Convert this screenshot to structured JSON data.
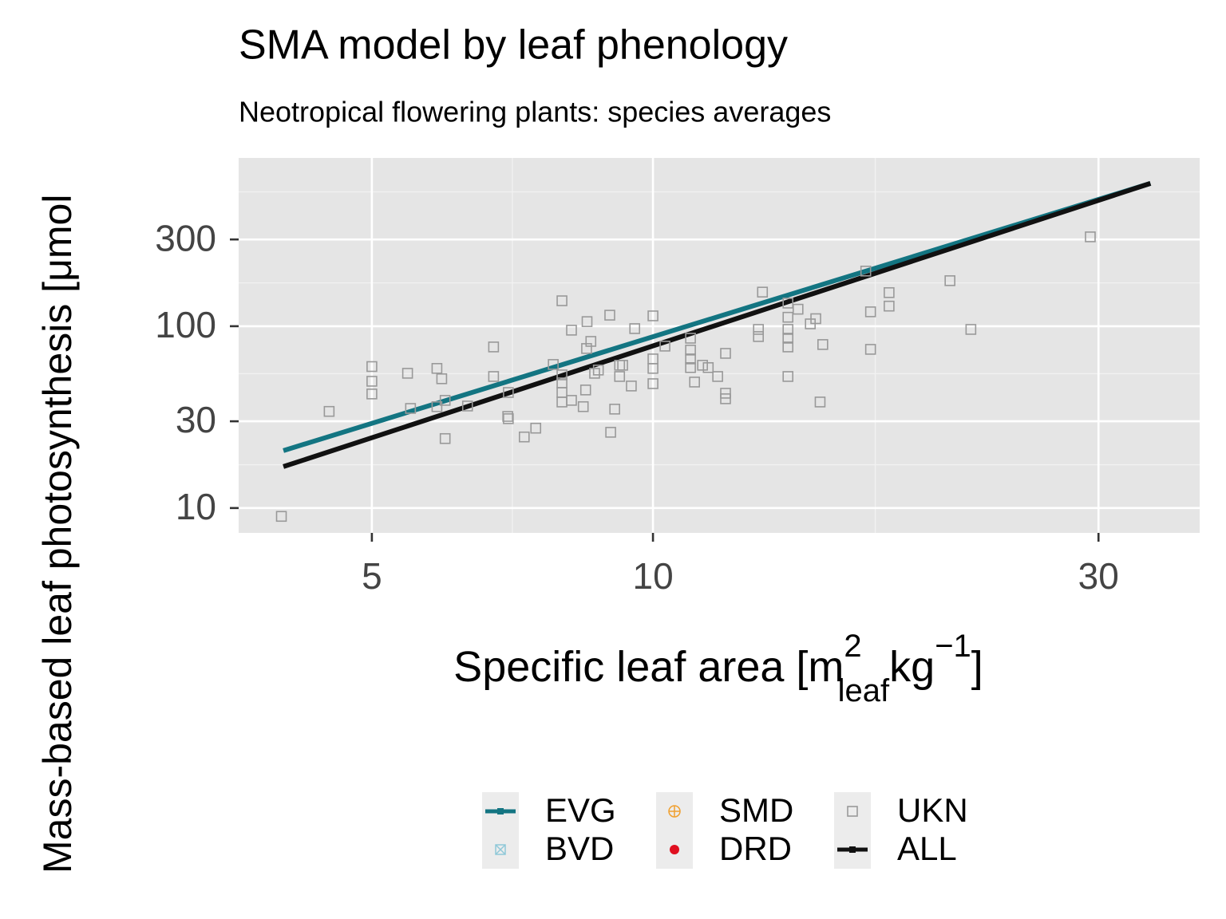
{
  "chart_data": {
    "type": "scatter",
    "title": "SMA model by leaf phenology",
    "subtitle": "Neotropical flowering plants: species averages",
    "y_label": "Mass-based leaf photosynthesis [μmol",
    "x_label": {
      "text": "Specific leaf area [m",
      "sup1": "2",
      "sub": "leaf",
      "mid": "kg",
      "sup2": "−1",
      "end": "]"
    },
    "xlog": true,
    "ylog": true,
    "grid": true,
    "xlim": [
      3.6,
      38.5
    ],
    "ylim": [
      7.3,
      842
    ],
    "xticks": [
      5,
      10,
      30
    ],
    "yticks": [
      10,
      30,
      100,
      300
    ],
    "xminor": [
      7.07,
      17.3
    ],
    "yminor": [
      17.3,
      54.8,
      173,
      548
    ],
    "series": [
      {
        "name": "EVG",
        "kind": "line",
        "color": "#137582",
        "x": [
          4.02,
          34.1
        ],
        "values": [
          20.7,
          610
        ]
      },
      {
        "name": "BVD",
        "kind": "points",
        "symbol": "boxx",
        "color": "#8fc8d8",
        "x": [],
        "values": []
      },
      {
        "name": "SMD",
        "kind": "points",
        "symbol": "crosscircle",
        "color": "#f0a030",
        "x": [],
        "values": []
      },
      {
        "name": "DRD",
        "kind": "points",
        "symbol": "dot",
        "color": "#e01020",
        "x": [],
        "values": []
      },
      {
        "name": "UKN",
        "kind": "points",
        "symbol": "square",
        "color": "#999999",
        "x": [
          4.0,
          4.5,
          5.0,
          5.0,
          5.0,
          5.46,
          5.5,
          5.87,
          5.94,
          5.87,
          5.99,
          5.99,
          6.33,
          6.75,
          6.75,
          6.99,
          7.0,
          7.0,
          7.28,
          7.49,
          7.82,
          7.99,
          7.99,
          7.99,
          7.99,
          7.99,
          8.18,
          8.18,
          8.42,
          8.47,
          8.49,
          8.5,
          8.58,
          8.66,
          8.74,
          8.99,
          9.01,
          9.1,
          9.21,
          9.21,
          9.28,
          9.48,
          9.56,
          10,
          10,
          10,
          10,
          10.3,
          10.97,
          10.97,
          10.97,
          10.97,
          11.08,
          11.3,
          11.46,
          11.73,
          11.96,
          11.96,
          11.96,
          12.97,
          12.97,
          13.1,
          13.95,
          13.95,
          13.95,
          13.95,
          13.95,
          13.95,
          14.3,
          14.74,
          14.94,
          15.1,
          15.2,
          16.9,
          17.1,
          17.1,
          17.9,
          17.9,
          20.8,
          21.9,
          29.4
        ],
        "values": [
          9.0,
          34,
          60,
          49.8,
          42.4,
          55.1,
          35.3,
          58.6,
          51.4,
          36.1,
          39.1,
          24.1,
          36.4,
          76.9,
          52.9,
          31.9,
          31.0,
          43.2,
          24.6,
          27.5,
          61.6,
          138,
          54.0,
          48.8,
          43.2,
          38.3,
          95.1,
          39.1,
          36.1,
          44.6,
          75.4,
          106,
          82.5,
          55.1,
          57.4,
          115,
          26.1,
          35.0,
          61.0,
          52.9,
          61.0,
          46.9,
          97.0,
          114,
          66.1,
          58.6,
          48.3,
          77.7,
          85.9,
          73.9,
          66.1,
          59.2,
          49.3,
          61.0,
          59.2,
          52.9,
          70.9,
          42.8,
          39.9,
          96,
          87.7,
          154,
          134,
          112,
          96,
          85.9,
          76.9,
          52.9,
          124,
          103,
          110,
          38.3,
          79.3,
          201,
          120,
          74.6,
          153,
          129,
          178,
          96,
          310
        ]
      },
      {
        "name": "ALL",
        "kind": "line",
        "color": "#111111",
        "x": [
          4.02,
          34.1
        ],
        "values": [
          16.9,
          610
        ]
      }
    ]
  }
}
